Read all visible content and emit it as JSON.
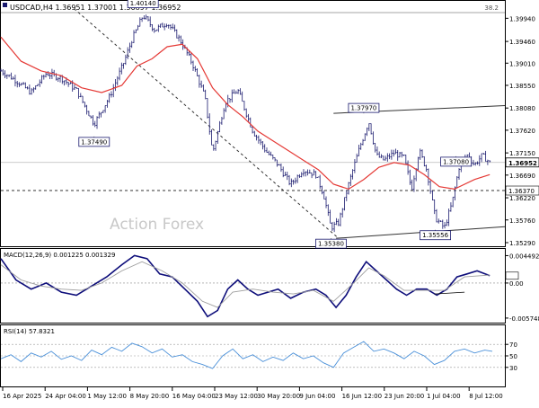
{
  "header": {
    "symbol_line": "USDCAD,H4   1.36951  1.37001  1.36897  1.36952",
    "corner_value": "38.2"
  },
  "watermark": "Action Forex",
  "colors": {
    "price": "#1a1a6e",
    "ma": "#e53935",
    "macd": "#0d0d7a",
    "signal": "#9e9e9e",
    "rsi": "#4a90d9",
    "grid_dash": "#666666",
    "label_border": "#1a1a6e",
    "label_fill": "#ffffff",
    "current_box": "#ffffff"
  },
  "chart_data": [
    {
      "type": "candlestick",
      "title": "USDCAD,H4",
      "ylim": [
        1.3529,
        1.4017
      ],
      "yticks": [
        "1.39940",
        "1.39460",
        "1.39010",
        "1.38550",
        "1.38080",
        "1.37620",
        "1.37150",
        "1.36690",
        "1.36220",
        "1.35760",
        "1.35290"
      ],
      "current_price": "1.36952",
      "level_line": "1.36370",
      "fib_label": "38.2",
      "x_labels": [
        "16 Apr 2025",
        "24 Apr 04:00",
        "1 May 12:00",
        "8 May 20:00",
        "16 May 04:00",
        "23 May 12:00",
        "30 May 20:00",
        "9 Jun 04:00",
        "16 Jun 12:00",
        "23 Jun 20:00",
        "1 Jul 04:00",
        "8 Jul 12:00"
      ],
      "annotations": [
        {
          "label": "1.40140",
          "x": 0.282,
          "y": 1.4014
        },
        {
          "label": "1.37490",
          "x": 0.185,
          "y": 1.3749
        },
        {
          "label": "1.37970",
          "x": 0.72,
          "y": 1.3797
        },
        {
          "label": "1.35380",
          "x": 0.655,
          "y": 1.3538
        },
        {
          "label": "1.35556",
          "x": 0.862,
          "y": 1.35556
        },
        {
          "label": "1.37080",
          "x": 0.903,
          "y": 1.3708
        }
      ],
      "trendlines": [
        {
          "name": "falling-dashed",
          "points": [
            [
              0.145,
              1.4014
            ],
            [
              0.67,
              1.3538
            ]
          ],
          "style": "dashed"
        },
        {
          "name": "upper-channel",
          "points": [
            [
              0.66,
              1.3797
            ],
            [
              1.0,
              1.3813
            ]
          ],
          "style": "solid"
        },
        {
          "name": "lower-channel",
          "points": [
            [
              0.665,
              1.3538
            ],
            [
              1.0,
              1.3562
            ]
          ],
          "style": "solid"
        }
      ],
      "close_path": [
        [
          0.0,
          1.3885
        ],
        [
          0.03,
          1.3865
        ],
        [
          0.06,
          1.384
        ],
        [
          0.09,
          1.388
        ],
        [
          0.12,
          1.387
        ],
        [
          0.15,
          1.3845
        ],
        [
          0.185,
          1.3775
        ],
        [
          0.215,
          1.383
        ],
        [
          0.245,
          1.3905
        ],
        [
          0.26,
          1.395
        ],
        [
          0.282,
          1.4
        ],
        [
          0.305,
          1.397
        ],
        [
          0.33,
          1.3985
        ],
        [
          0.355,
          1.395
        ],
        [
          0.38,
          1.39
        ],
        [
          0.405,
          1.383
        ],
        [
          0.42,
          1.3715
        ],
        [
          0.445,
          1.382
        ],
        [
          0.47,
          1.3845
        ],
        [
          0.5,
          1.376
        ],
        [
          0.525,
          1.372
        ],
        [
          0.55,
          1.369
        ],
        [
          0.575,
          1.365
        ],
        [
          0.6,
          1.368
        ],
        [
          0.625,
          1.367
        ],
        [
          0.64,
          1.363
        ],
        [
          0.655,
          1.356
        ],
        [
          0.67,
          1.357
        ],
        [
          0.69,
          1.365
        ],
        [
          0.71,
          1.372
        ],
        [
          0.73,
          1.378
        ],
        [
          0.745,
          1.371
        ],
        [
          0.76,
          1.37
        ],
        [
          0.78,
          1.3715
        ],
        [
          0.8,
          1.3705
        ],
        [
          0.815,
          1.364
        ],
        [
          0.83,
          1.372
        ],
        [
          0.845,
          1.368
        ],
        [
          0.862,
          1.358
        ],
        [
          0.88,
          1.356
        ],
        [
          0.895,
          1.361
        ],
        [
          0.91,
          1.369
        ],
        [
          0.925,
          1.371
        ],
        [
          0.94,
          1.369
        ],
        [
          0.955,
          1.371
        ],
        [
          0.97,
          1.3695
        ]
      ],
      "ma_path": [
        [
          0.0,
          1.3955
        ],
        [
          0.04,
          1.3905
        ],
        [
          0.08,
          1.3885
        ],
        [
          0.12,
          1.3875
        ],
        [
          0.16,
          1.385
        ],
        [
          0.2,
          1.384
        ],
        [
          0.24,
          1.3855
        ],
        [
          0.27,
          1.3895
        ],
        [
          0.3,
          1.391
        ],
        [
          0.33,
          1.3935
        ],
        [
          0.36,
          1.394
        ],
        [
          0.39,
          1.391
        ],
        [
          0.42,
          1.385
        ],
        [
          0.45,
          1.3815
        ],
        [
          0.48,
          1.379
        ],
        [
          0.51,
          1.376
        ],
        [
          0.54,
          1.374
        ],
        [
          0.57,
          1.372
        ],
        [
          0.6,
          1.37
        ],
        [
          0.63,
          1.368
        ],
        [
          0.66,
          1.365
        ],
        [
          0.69,
          1.364
        ],
        [
          0.72,
          1.366
        ],
        [
          0.75,
          1.3685
        ],
        [
          0.78,
          1.3695
        ],
        [
          0.81,
          1.369
        ],
        [
          0.84,
          1.367
        ],
        [
          0.87,
          1.3645
        ],
        [
          0.9,
          1.364
        ],
        [
          0.94,
          1.366
        ],
        [
          0.97,
          1.367
        ]
      ]
    },
    {
      "type": "line",
      "title": "MACD(12,26,9) 0.001225 0.001329",
      "ylim": [
        -0.0062,
        0.005
      ],
      "yticks": [
        "0.004492",
        "0.00",
        "-0.005748"
      ],
      "series": [
        {
          "name": "MACD",
          "points": [
            [
              0.0,
              0.004
            ],
            [
              0.03,
              0.0005
            ],
            [
              0.06,
              -0.001
            ],
            [
              0.09,
              0.0
            ],
            [
              0.12,
              -0.0015
            ],
            [
              0.15,
              -0.002
            ],
            [
              0.18,
              -0.0005
            ],
            [
              0.21,
              0.001
            ],
            [
              0.24,
              0.003
            ],
            [
              0.265,
              0.0045
            ],
            [
              0.29,
              0.004
            ],
            [
              0.315,
              0.0015
            ],
            [
              0.34,
              0.001
            ],
            [
              0.365,
              -0.001
            ],
            [
              0.39,
              -0.003
            ],
            [
              0.41,
              -0.0055
            ],
            [
              0.43,
              -0.0045
            ],
            [
              0.45,
              -0.001
            ],
            [
              0.47,
              0.0005
            ],
            [
              0.49,
              -0.001
            ],
            [
              0.51,
              -0.002
            ],
            [
              0.53,
              -0.0015
            ],
            [
              0.55,
              -0.001
            ],
            [
              0.575,
              -0.0025
            ],
            [
              0.6,
              -0.0015
            ],
            [
              0.625,
              -0.001
            ],
            [
              0.645,
              -0.002
            ],
            [
              0.665,
              -0.004
            ],
            [
              0.685,
              -0.002
            ],
            [
              0.705,
              0.001
            ],
            [
              0.725,
              0.0035
            ],
            [
              0.745,
              0.002
            ],
            [
              0.765,
              0.0005
            ],
            [
              0.785,
              -0.001
            ],
            [
              0.805,
              -0.002
            ],
            [
              0.825,
              -0.001
            ],
            [
              0.845,
              -0.001
            ],
            [
              0.865,
              -0.002
            ],
            [
              0.885,
              -0.001
            ],
            [
              0.905,
              0.001
            ],
            [
              0.925,
              0.0015
            ],
            [
              0.945,
              0.002
            ],
            [
              0.97,
              0.0012
            ]
          ]
        },
        {
          "name": "Signal",
          "points": [
            [
              0.0,
              0.003
            ],
            [
              0.04,
              0.0005
            ],
            [
              0.08,
              -0.0005
            ],
            [
              0.12,
              -0.001
            ],
            [
              0.16,
              -0.0012
            ],
            [
              0.2,
              0.0
            ],
            [
              0.24,
              0.002
            ],
            [
              0.28,
              0.0035
            ],
            [
              0.32,
              0.002
            ],
            [
              0.36,
              0.0
            ],
            [
              0.4,
              -0.003
            ],
            [
              0.43,
              -0.004
            ],
            [
              0.46,
              -0.0015
            ],
            [
              0.5,
              -0.001
            ],
            [
              0.54,
              -0.0015
            ],
            [
              0.58,
              -0.0018
            ],
            [
              0.62,
              -0.0012
            ],
            [
              0.66,
              -0.003
            ],
            [
              0.7,
              0.0
            ],
            [
              0.73,
              0.0025
            ],
            [
              0.76,
              0.0012
            ],
            [
              0.8,
              -0.0012
            ],
            [
              0.84,
              -0.0012
            ],
            [
              0.88,
              -0.0012
            ],
            [
              0.92,
              0.001
            ],
            [
              0.97,
              0.0013
            ]
          ]
        }
      ]
    },
    {
      "type": "line",
      "title": "RSI(14) 57.8321",
      "ylim": [
        0,
        100
      ],
      "yticks": [
        "70",
        "50",
        "30"
      ],
      "series": [
        {
          "name": "RSI",
          "points": [
            [
              0.0,
              45
            ],
            [
              0.02,
              52
            ],
            [
              0.04,
              40
            ],
            [
              0.06,
              55
            ],
            [
              0.08,
              48
            ],
            [
              0.1,
              58
            ],
            [
              0.12,
              44
            ],
            [
              0.14,
              50
            ],
            [
              0.16,
              42
            ],
            [
              0.18,
              60
            ],
            [
              0.2,
              52
            ],
            [
              0.22,
              65
            ],
            [
              0.24,
              58
            ],
            [
              0.26,
              72
            ],
            [
              0.28,
              66
            ],
            [
              0.3,
              55
            ],
            [
              0.32,
              62
            ],
            [
              0.34,
              48
            ],
            [
              0.36,
              52
            ],
            [
              0.38,
              40
            ],
            [
              0.4,
              35
            ],
            [
              0.42,
              28
            ],
            [
              0.44,
              50
            ],
            [
              0.46,
              62
            ],
            [
              0.48,
              45
            ],
            [
              0.5,
              52
            ],
            [
              0.52,
              40
            ],
            [
              0.54,
              48
            ],
            [
              0.56,
              42
            ],
            [
              0.58,
              55
            ],
            [
              0.6,
              45
            ],
            [
              0.62,
              50
            ],
            [
              0.64,
              38
            ],
            [
              0.66,
              30
            ],
            [
              0.68,
              55
            ],
            [
              0.7,
              65
            ],
            [
              0.72,
              75
            ],
            [
              0.74,
              58
            ],
            [
              0.76,
              62
            ],
            [
              0.78,
              55
            ],
            [
              0.8,
              45
            ],
            [
              0.82,
              58
            ],
            [
              0.84,
              50
            ],
            [
              0.86,
              35
            ],
            [
              0.88,
              42
            ],
            [
              0.9,
              58
            ],
            [
              0.92,
              62
            ],
            [
              0.94,
              55
            ],
            [
              0.96,
              60
            ],
            [
              0.975,
              58
            ]
          ]
        }
      ]
    }
  ]
}
